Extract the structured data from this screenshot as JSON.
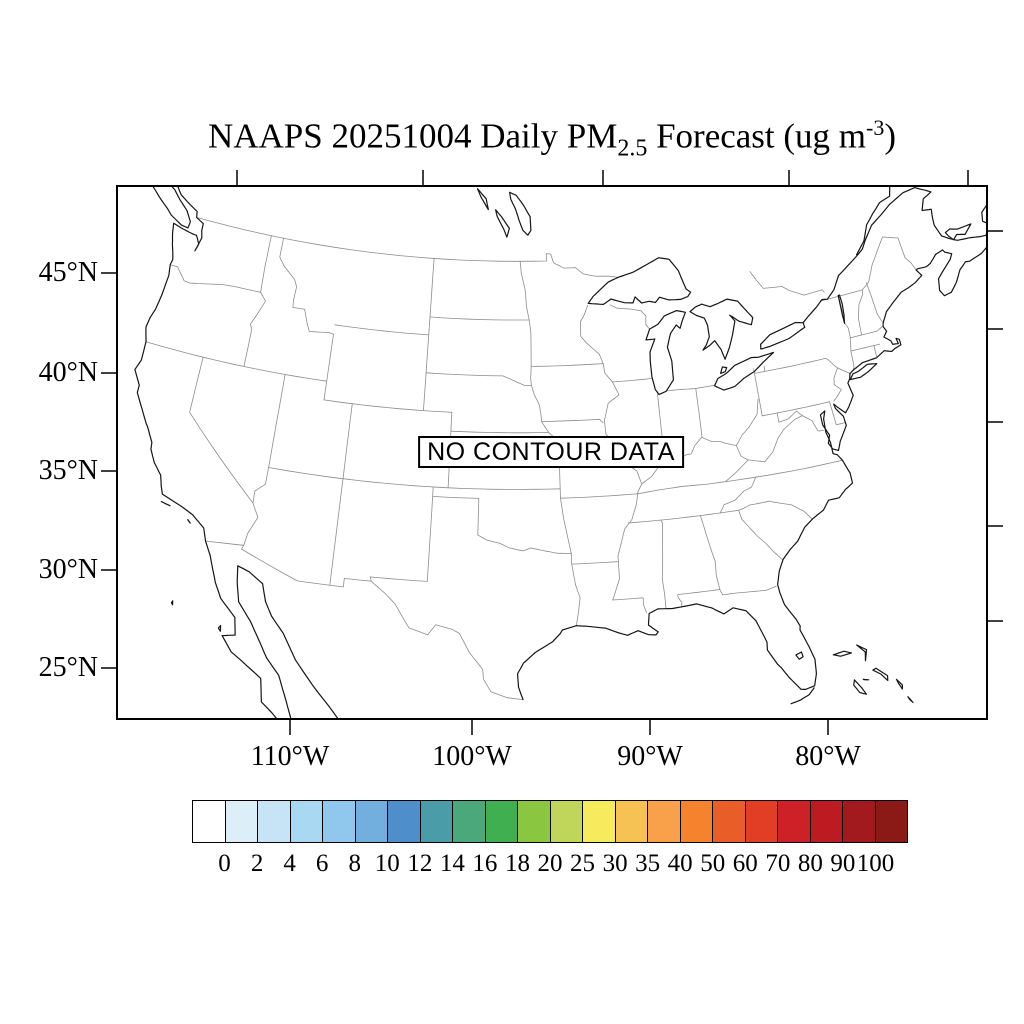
{
  "title": {
    "part1": "NAAPS 20251004 Daily PM",
    "subscript": "2.5",
    "part2": " Forecast (ug m",
    "superscript": "-3",
    "part3": ")"
  },
  "map": {
    "no_data_label": "NO CONTOUR DATA",
    "lat_tick_labels": [
      "45°N",
      "40°N",
      "35°N",
      "30°N",
      "25°N"
    ],
    "lon_tick_labels": [
      "110°W",
      "100°W",
      "90°W",
      "80°W"
    ]
  },
  "colorbar": {
    "tick_values": [
      0,
      2,
      4,
      6,
      8,
      10,
      12,
      14,
      16,
      18,
      20,
      25,
      30,
      35,
      40,
      50,
      60,
      70,
      80,
      90,
      100
    ],
    "colors": [
      "#ffffff",
      "#dceef8",
      "#c6e4f5",
      "#a8d8f2",
      "#8fc8ec",
      "#72aede",
      "#4e8fcb",
      "#4a9ca8",
      "#4ba87b",
      "#3faf4f",
      "#8ac640",
      "#bfd65a",
      "#f6eb5c",
      "#f7c254",
      "#f9a04b",
      "#f5822d",
      "#e95d28",
      "#e23d25",
      "#cd2127",
      "#bb1b21",
      "#a31a1e",
      "#8b1a17"
    ]
  }
}
